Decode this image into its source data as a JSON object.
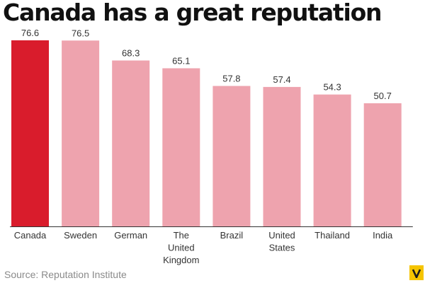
{
  "chart_data": {
    "type": "bar",
    "title": "Canada has a great reputation",
    "categories": [
      "Canada",
      "Sweden",
      "German",
      "The United Kingdom",
      "Brazil",
      "United States",
      "Thailand",
      "India"
    ],
    "category_lines": [
      [
        "Canada"
      ],
      [
        "Sweden"
      ],
      [
        "German"
      ],
      [
        "The",
        "United",
        "Kingdom"
      ],
      [
        "Brazil"
      ],
      [
        "United",
        "States"
      ],
      [
        "Thailand"
      ],
      [
        "India"
      ]
    ],
    "values": [
      76.6,
      76.5,
      68.3,
      65.1,
      57.8,
      57.4,
      54.3,
      50.7
    ],
    "value_labels": [
      "76.6",
      "76.5",
      "68.3",
      "65.1",
      "57.8",
      "57.4",
      "54.3",
      "50.7"
    ],
    "ylim": [
      0,
      76.6
    ],
    "xlabel": "",
    "ylabel": "",
    "grid": false,
    "highlight_index": 0,
    "colors": {
      "highlight": "#d91c2c",
      "default": "#eea3ae"
    }
  },
  "source": "Source: Reputation Institute",
  "brand_icon": "vox-logo-icon"
}
